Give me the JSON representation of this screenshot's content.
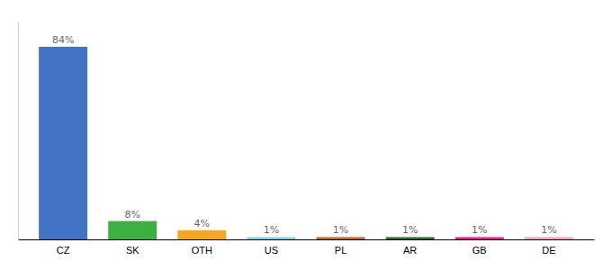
{
  "chart_data": {
    "type": "bar",
    "categories": [
      "CZ",
      "SK",
      "OTH",
      "US",
      "PL",
      "AR",
      "GB",
      "DE"
    ],
    "values": [
      84,
      8,
      4,
      1,
      1,
      1,
      1,
      1
    ],
    "value_labels": [
      "84%",
      "8%",
      "4%",
      "1%",
      "1%",
      "1%",
      "1%",
      "1%"
    ],
    "colors": [
      "#4472c4",
      "#3cb043",
      "#f5a623",
      "#87ceeb",
      "#c86428",
      "#2e6b2e",
      "#e91e8c",
      "#f4a7b9"
    ],
    "ylim": [
      0,
      95
    ],
    "data_labels": true,
    "tick_labels": "x"
  }
}
